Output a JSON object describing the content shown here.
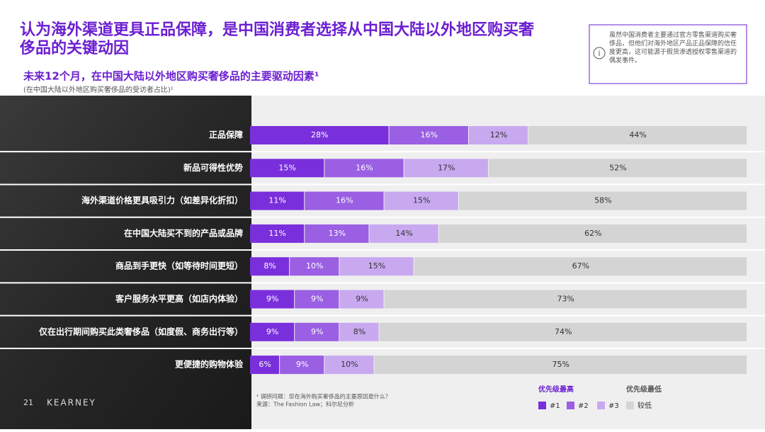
{
  "title": "认为海外渠道更具正品保障，是中国消费者选择从中国大陆以外地区购买奢侈品的关键动因",
  "info_box": "虽然中国消费者主要通过官方零售渠道购买奢侈品，但他们对海外地区产品正品保障的信任度更高，这可能源于假货渗透授权零售渠道的偶发事件。",
  "footnotes": [
    "¹ 调研问题：您在海外购买奢侈品的主要原因是什么？",
    "来源：The Fashion Law；科尔尼分析"
  ],
  "page_number": "21",
  "brand": "KEARNEY",
  "chart_data": {
    "type": "stacked-bar-horizontal",
    "title": "未来12个月，在中国大陆以外地区购买奢侈品的主要驱动因素¹",
    "subtitle": "(在中国大陆以外地区购买奢侈品的受访者占比)¹",
    "categories": [
      "正品保障",
      "新品可得性优势",
      "海外渠道价格更具吸引力（如差异化折扣）",
      "在中国大陆买不到的产品或品牌",
      "商品到手更快（如等待时间更短）",
      "客户服务水平更高（如店内体验）",
      "仅在出行期间购买此类奢侈品（如度假、商务出行等）",
      "更便捷的购物体验"
    ],
    "xlim": [
      0,
      100
    ],
    "legend_high": "优先级最高",
    "legend_low": "优先级最低",
    "series": [
      {
        "name": "#1",
        "color": "#7a2fdc",
        "values": [
          28,
          15,
          11,
          11,
          8,
          9,
          9,
          6
        ],
        "value_labels": [
          "28%",
          "15%",
          "11%",
          "11%",
          "8%",
          "9%",
          "9%",
          "6%"
        ]
      },
      {
        "name": "#2",
        "color": "#9a5fe3",
        "values": [
          16,
          16,
          16,
          13,
          10,
          9,
          9,
          9
        ],
        "value_labels": [
          "16%",
          "16%",
          "16%",
          "13%",
          "10%",
          "9%",
          "9%",
          "9%"
        ]
      },
      {
        "name": "#3",
        "color": "#c8a9f0",
        "values": [
          12,
          17,
          15,
          14,
          15,
          9,
          8,
          10
        ],
        "value_labels": [
          "12%",
          "17%",
          "15%",
          "14%",
          "15%",
          "9%",
          "8%",
          "10%"
        ]
      },
      {
        "name": "较低",
        "color": "#d4d4d4",
        "values": [
          44,
          52,
          58,
          62,
          67,
          73,
          74,
          75
        ],
        "value_labels": [
          "44%",
          "52%",
          "58%",
          "62%",
          "67%",
          "73%",
          "74%",
          "75%"
        ]
      }
    ]
  }
}
